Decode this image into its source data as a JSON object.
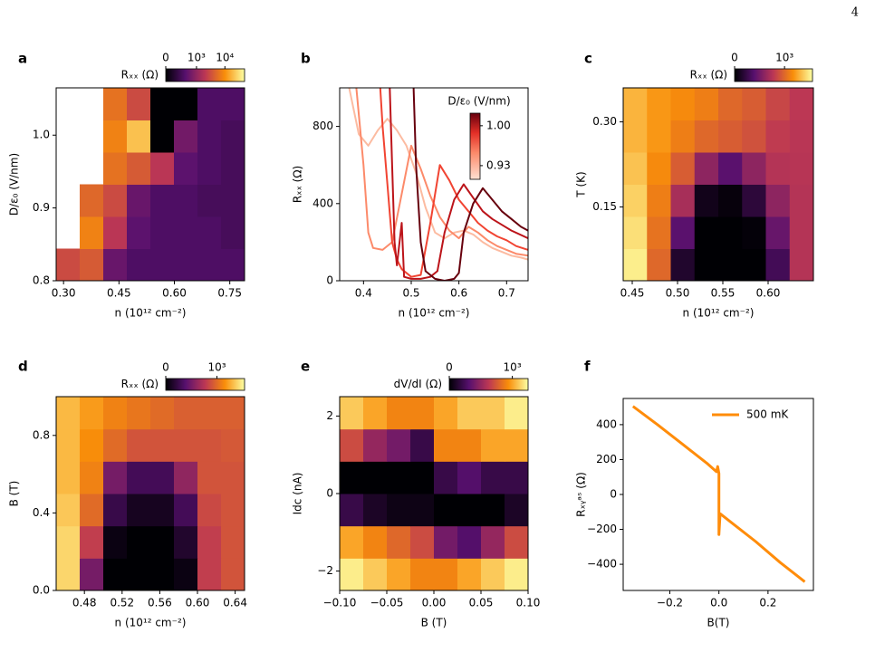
{
  "page_number": "4",
  "chart_data": [
    {
      "type": "heatmap",
      "panel": "a",
      "xlabel": "n (10¹² cm⁻²)",
      "ylabel": "D/ε₀ (V/nm)",
      "xlim": [
        0.28,
        0.79
      ],
      "ylim": [
        0.8,
        1.065
      ],
      "xticks": [
        {
          "value": 0.3,
          "label": "0.30"
        },
        0.45,
        {
          "value": 0.6,
          "label": "0.60"
        },
        0.75
      ],
      "yticks": [
        0.8,
        0.9,
        {
          "value": 1.0,
          "label": "1.0"
        }
      ],
      "colormap": "inferno",
      "cscale": "symlog",
      "linthresh": 100,
      "clim": [
        0,
        46700
      ],
      "clabel": "Rₓₓ (Ω)",
      "cticks": [
        0,
        {
          "value": 1000,
          "label": "10³"
        },
        {
          "value": 10000,
          "label": "10⁴"
        }
      ],
      "z": [
        [
          3000,
          4000,
          500,
          300,
          300,
          300,
          300,
          300
        ],
        [
          null,
          8000,
          2000,
          400,
          300,
          300,
          300,
          250
        ],
        [
          null,
          5000,
          3000,
          500,
          300,
          300,
          250,
          250
        ],
        [
          null,
          null,
          6000,
          4000,
          2000,
          400,
          300,
          250
        ],
        [
          null,
          null,
          8000,
          20000,
          0,
          600,
          300,
          250
        ],
        [
          null,
          null,
          6000,
          3000,
          0,
          0,
          300,
          300
        ]
      ]
    },
    {
      "type": "line",
      "panel": "b",
      "xlabel": "n (10¹² cm⁻²)",
      "ylabel": "Rₓₓ (Ω)",
      "xlim": [
        0.35,
        0.745
      ],
      "ylim": [
        0,
        1000
      ],
      "xticks": [
        0.4,
        0.5,
        0.6,
        0.7
      ],
      "yticks": [
        0,
        400,
        800
      ],
      "colorbar": {
        "label": "D/ε₀ (V/nm)",
        "lim": [
          0.906,
          1.022
        ],
        "ticks": [
          {
            "value": 1.0,
            "label": "1.00"
          },
          0.93
        ]
      },
      "series": [
        {
          "color": "#fcbba1",
          "x": [
            0.37,
            0.39,
            0.41,
            0.43,
            0.45,
            0.47,
            0.49,
            0.51,
            0.53,
            0.55,
            0.57,
            0.59,
            0.61,
            0.63,
            0.65,
            0.67,
            0.69,
            0.71,
            0.73,
            0.745
          ],
          "values": [
            1000,
            760,
            700,
            780,
            840,
            780,
            700,
            560,
            380,
            250,
            220,
            250,
            260,
            240,
            200,
            170,
            150,
            130,
            120,
            110
          ]
        },
        {
          "color": "#fc8a6a",
          "x": [
            0.385,
            0.4,
            0.41,
            0.42,
            0.44,
            0.46,
            0.48,
            0.5,
            0.52,
            0.54,
            0.56,
            0.58,
            0.6,
            0.62,
            0.64,
            0.66,
            0.68,
            0.7,
            0.72,
            0.745
          ],
          "values": [
            1000,
            600,
            250,
            170,
            160,
            200,
            450,
            700,
            580,
            440,
            330,
            260,
            220,
            280,
            250,
            210,
            180,
            160,
            140,
            130
          ]
        },
        {
          "color": "#f14432",
          "x": [
            0.435,
            0.44,
            0.45,
            0.46,
            0.47,
            0.48,
            0.5,
            0.52,
            0.54,
            0.56,
            0.58,
            0.6,
            0.62,
            0.64,
            0.66,
            0.68,
            0.7,
            0.72,
            0.745
          ],
          "values": [
            1000,
            800,
            500,
            200,
            110,
            60,
            20,
            30,
            300,
            600,
            520,
            420,
            360,
            300,
            260,
            230,
            210,
            180,
            160
          ]
        },
        {
          "color": "#bc141a",
          "x": [
            0.455,
            0.46,
            0.465,
            0.47,
            0.48,
            0.485,
            0.5,
            0.52,
            0.54,
            0.555,
            0.57,
            0.59,
            0.61,
            0.63,
            0.65,
            0.67,
            0.69,
            0.71,
            0.745
          ],
          "values": [
            1000,
            600,
            200,
            80,
            300,
            20,
            10,
            10,
            20,
            50,
            250,
            420,
            500,
            430,
            360,
            320,
            290,
            260,
            220
          ]
        },
        {
          "color": "#67000d",
          "x": [
            0.505,
            0.51,
            0.52,
            0.53,
            0.55,
            0.57,
            0.59,
            0.6,
            0.61,
            0.63,
            0.65,
            0.67,
            0.69,
            0.71,
            0.73,
            0.745
          ],
          "values": [
            1000,
            600,
            200,
            50,
            10,
            0,
            10,
            40,
            250,
            400,
            480,
            420,
            360,
            320,
            280,
            260
          ]
        }
      ]
    },
    {
      "type": "heatmap",
      "panel": "c",
      "xlabel": "n (10¹² cm⁻²)",
      "ylabel": "T (K)",
      "xlim": [
        0.44,
        0.65
      ],
      "ylim": [
        0.02,
        0.36
      ],
      "xticks": [
        0.45,
        {
          "value": 0.5,
          "label": "0.50"
        },
        0.55,
        {
          "value": 0.6,
          "label": "0.60"
        }
      ],
      "yticks": [
        0.15,
        {
          "value": 0.3,
          "label": "0.30"
        }
      ],
      "colormap": "inferno",
      "cscale": "linear",
      "clim": [
        0,
        1560
      ],
      "clabel": "Rₓₓ (Ω)",
      "cticks": [
        0,
        {
          "value": 1000,
          "label": "10³"
        }
      ],
      "z": [
        [
          1500,
          1000,
          150,
          0,
          0,
          0,
          300,
          750
        ],
        [
          1450,
          1050,
          400,
          0,
          0,
          20,
          450,
          750
        ],
        [
          1400,
          1100,
          700,
          80,
          30,
          200,
          600,
          750
        ],
        [
          1350,
          1150,
          950,
          600,
          400,
          600,
          750,
          760
        ],
        [
          1300,
          1200,
          1100,
          1000,
          950,
          900,
          800,
          770
        ],
        [
          1300,
          1200,
          1150,
          1100,
          1000,
          950,
          850,
          780
        ]
      ]
    },
    {
      "type": "heatmap",
      "panel": "d",
      "xlabel": "n (10¹² cm⁻²)",
      "ylabel": "B (T)",
      "xlim": [
        0.45,
        0.65
      ],
      "ylim": [
        0,
        1
      ],
      "xticks": [
        0.48,
        0.52,
        0.56,
        {
          "value": 0.6,
          "label": "0.60"
        },
        0.64
      ],
      "yticks": [
        {
          "value": 0,
          "label": "0.0"
        },
        0.4,
        0.8
      ],
      "colormap": "inferno",
      "cscale": "linear",
      "clim": [
        0,
        1540
      ],
      "clabel": "Rₓₓ (Ω)",
      "cticks": [
        0,
        {
          "value": 1000,
          "label": "10³"
        }
      ],
      "z": [
        [
          1400,
          500,
          0,
          0,
          0,
          50,
          800,
          900
        ],
        [
          1400,
          800,
          50,
          0,
          0,
          150,
          800,
          900
        ],
        [
          1350,
          1000,
          250,
          100,
          100,
          300,
          850,
          900
        ],
        [
          1300,
          1100,
          500,
          300,
          300,
          600,
          900,
          900
        ],
        [
          1300,
          1150,
          1000,
          900,
          900,
          900,
          900,
          920
        ],
        [
          1300,
          1200,
          1100,
          1050,
          1000,
          950,
          950,
          950
        ]
      ]
    },
    {
      "type": "heatmap",
      "panel": "e",
      "xlabel": "B (T)",
      "ylabel": "Idc (nA)",
      "xlim": [
        -0.1,
        0.1
      ],
      "ylim": [
        -2.5,
        2.5
      ],
      "xticks": [
        {
          "value": -0.1,
          "label": "−0.10"
        },
        {
          "value": -0.05,
          "label": "−0.05"
        },
        {
          "value": 0,
          "label": "0.00"
        },
        {
          "value": 0.05,
          "label": "0.05"
        },
        {
          "value": 0.1,
          "label": "0.10"
        }
      ],
      "yticks": [
        {
          "value": -2,
          "label": "−2"
        },
        0,
        2
      ],
      "colormap": "inferno",
      "cscale": "linear",
      "clim": [
        0,
        1250
      ],
      "clabel": "dV/dI (Ω)",
      "cticks": [
        0,
        {
          "value": 1000,
          "label": "10³"
        }
      ],
      "z": [
        [
          1200,
          1100,
          1000,
          900,
          900,
          1000,
          1100,
          1200
        ],
        [
          1000,
          900,
          800,
          700,
          400,
          300,
          500,
          700
        ],
        [
          200,
          100,
          50,
          50,
          0,
          0,
          0,
          100
        ],
        [
          0,
          0,
          0,
          0,
          200,
          300,
          200,
          200
        ],
        [
          700,
          500,
          400,
          200,
          900,
          900,
          1000,
          1000
        ],
        [
          1100,
          1000,
          900,
          900,
          1000,
          1100,
          1100,
          1200
        ]
      ]
    },
    {
      "type": "line",
      "panel": "f",
      "xlabel": "B(T)",
      "ylabel": "Rₓᵧᵃˢ (Ω)",
      "xlim": [
        -0.39,
        0.385
      ],
      "ylim": [
        -550,
        550
      ],
      "xticks": [
        {
          "value": -0.2,
          "label": "−0.2"
        },
        {
          "value": 0,
          "label": "0.0"
        },
        0.2
      ],
      "yticks": [
        {
          "value": -400,
          "label": "−400"
        },
        {
          "value": -200,
          "label": "−200"
        },
        0,
        200,
        400
      ],
      "legend": "upper right",
      "series": [
        {
          "name": "500 mK",
          "color": "#ff8c0a",
          "x": [
            -0.35,
            -0.25,
            -0.15,
            -0.05,
            -0.01,
            -0.005,
            0,
            0,
            0.005,
            0.05,
            0.15,
            0.25,
            0.35
          ],
          "values": [
            505,
            400,
            290,
            180,
            130,
            160,
            120,
            -230,
            -110,
            -160,
            -270,
            -390,
            -500
          ]
        }
      ]
    }
  ]
}
